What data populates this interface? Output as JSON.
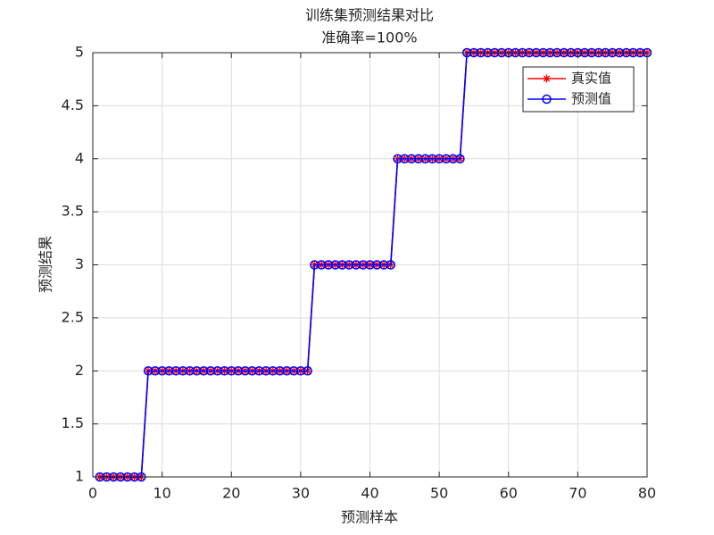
{
  "chart_data": {
    "type": "line",
    "title": "训练集预测结果对比",
    "subtitle": "准确率=100%",
    "x_label": "预测样本",
    "y_label": "预测结果",
    "x": [
      1,
      2,
      3,
      4,
      5,
      6,
      7,
      8,
      9,
      10,
      11,
      12,
      13,
      14,
      15,
      16,
      17,
      18,
      19,
      20,
      21,
      22,
      23,
      24,
      25,
      26,
      27,
      28,
      29,
      30,
      31,
      32,
      33,
      34,
      35,
      36,
      37,
      38,
      39,
      40,
      41,
      42,
      43,
      44,
      45,
      46,
      47,
      48,
      49,
      50,
      51,
      52,
      53,
      54,
      55,
      56,
      57,
      58,
      59,
      60,
      61,
      62,
      63,
      64,
      65,
      66,
      67,
      68,
      69,
      70,
      71,
      72,
      73,
      74,
      75,
      76,
      77,
      78,
      79,
      80
    ],
    "series": [
      {
        "name": "真实值",
        "color": "#ff0000",
        "marker": "asterisk",
        "values": [
          1,
          1,
          1,
          1,
          1,
          1,
          1,
          2,
          2,
          2,
          2,
          2,
          2,
          2,
          2,
          2,
          2,
          2,
          2,
          2,
          2,
          2,
          2,
          2,
          2,
          2,
          2,
          2,
          2,
          2,
          2,
          3,
          3,
          3,
          3,
          3,
          3,
          3,
          3,
          3,
          3,
          3,
          3,
          4,
          4,
          4,
          4,
          4,
          4,
          4,
          4,
          4,
          4,
          5,
          5,
          5,
          5,
          5,
          5,
          5,
          5,
          5,
          5,
          5,
          5,
          5,
          5,
          5,
          5,
          5,
          5,
          5,
          5,
          5,
          5,
          5,
          5,
          5,
          5,
          5
        ]
      },
      {
        "name": "预测值",
        "color": "#0000ff",
        "marker": "circle",
        "values": [
          1,
          1,
          1,
          1,
          1,
          1,
          1,
          2,
          2,
          2,
          2,
          2,
          2,
          2,
          2,
          2,
          2,
          2,
          2,
          2,
          2,
          2,
          2,
          2,
          2,
          2,
          2,
          2,
          2,
          2,
          2,
          3,
          3,
          3,
          3,
          3,
          3,
          3,
          3,
          3,
          3,
          3,
          3,
          4,
          4,
          4,
          4,
          4,
          4,
          4,
          4,
          4,
          4,
          5,
          5,
          5,
          5,
          5,
          5,
          5,
          5,
          5,
          5,
          5,
          5,
          5,
          5,
          5,
          5,
          5,
          5,
          5,
          5,
          5,
          5,
          5,
          5,
          5,
          5,
          5
        ]
      }
    ],
    "xlim": [
      0,
      80
    ],
    "xticks": [
      0,
      10,
      20,
      30,
      40,
      50,
      60,
      70,
      80
    ],
    "ylim": [
      1,
      5
    ],
    "yticks": [
      1,
      1.5,
      2,
      2.5,
      3,
      3.5,
      4,
      4.5,
      5
    ],
    "grid": true,
    "legend": "northeast"
  }
}
